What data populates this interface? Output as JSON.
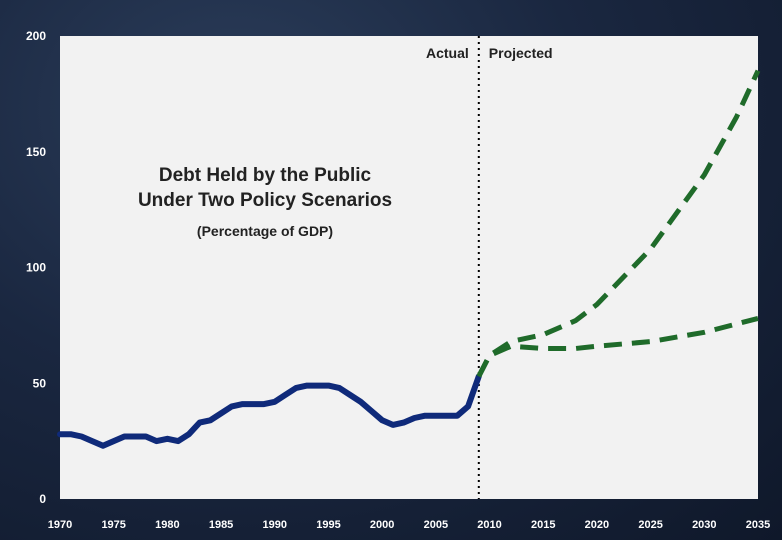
{
  "chart_data": {
    "type": "line",
    "title_lines": [
      "Debt Held by the Public",
      "Under Two Policy Scenarios"
    ],
    "subtitle": "(Percentage of GDP)",
    "xlabel": "",
    "ylabel": "",
    "xlim": [
      1970,
      2035
    ],
    "ylim": [
      0,
      200
    ],
    "y_ticks": [
      0,
      50,
      100,
      150,
      200
    ],
    "x_ticks": [
      1970,
      1975,
      1980,
      1985,
      1990,
      1995,
      2000,
      2005,
      2010,
      2015,
      2020,
      2025,
      2030,
      2035
    ],
    "divider_year": 2009,
    "region_labels": {
      "left": "Actual",
      "right": "Projected"
    },
    "grid": false,
    "legend": "none",
    "colors": {
      "actual": "#0f2a7a",
      "projected": "#1f6b2a",
      "divider": "#000000"
    },
    "series": [
      {
        "style": "solid",
        "x": [
          1970,
          1971,
          1972,
          1973,
          1974,
          1975,
          1976,
          1977,
          1978,
          1979,
          1980,
          1981,
          1982,
          1983,
          1984,
          1985,
          1986,
          1987,
          1988,
          1989,
          1990,
          1991,
          1992,
          1993,
          1994,
          1995,
          1996,
          1997,
          1998,
          1999,
          2000,
          2001,
          2002,
          2003,
          2004,
          2005,
          2006,
          2007,
          2008,
          2009
        ],
        "values": [
          28,
          28,
          27,
          25,
          23,
          25,
          27,
          27,
          27,
          25,
          26,
          25,
          28,
          33,
          34,
          37,
          40,
          41,
          41,
          41,
          42,
          45,
          48,
          49,
          49,
          49,
          48,
          45,
          42,
          38,
          34,
          32,
          33,
          35,
          36,
          36,
          36,
          36,
          40,
          53
        ]
      },
      {
        "style": "dashed",
        "x": [
          2009,
          2010,
          2012,
          2015,
          2018,
          2020,
          2025,
          2030,
          2033,
          2035
        ],
        "values": [
          53,
          62,
          68,
          71,
          77,
          84,
          108,
          140,
          165,
          185
        ]
      },
      {
        "style": "dashed",
        "x": [
          2009,
          2010,
          2012,
          2015,
          2018,
          2020,
          2025,
          2030,
          2035
        ],
        "values": [
          53,
          62,
          66,
          65,
          65,
          66,
          68,
          72,
          78
        ]
      }
    ]
  }
}
